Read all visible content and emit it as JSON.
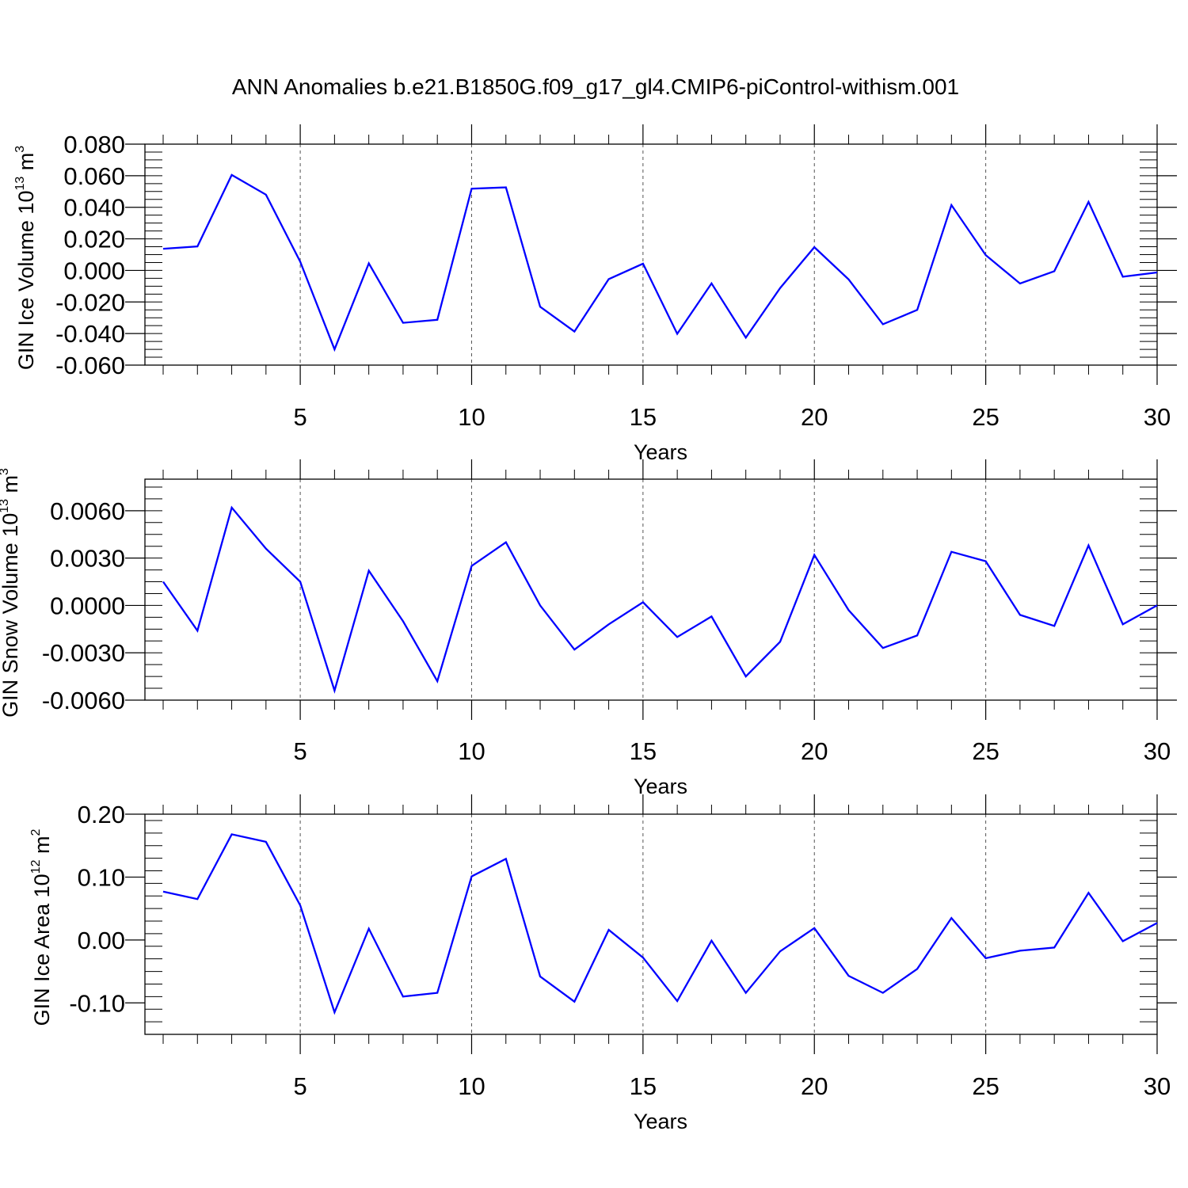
{
  "title": "ANN Anomalies b.e21.B1850G.f09_g17_gl4.CMIP6-piControl-withism.001",
  "colors": {
    "line": "#0000ff",
    "axis": "#000000",
    "grid": "#555555",
    "background": "#ffffff"
  },
  "chart_data": [
    {
      "type": "line",
      "ylabel_main": "GIN Ice Volume 10",
      "ylabel_exp": "13",
      "ylabel_unit": " m",
      "ylabel_unit_exp": "3",
      "xlabel": "Years",
      "xlim": [
        1,
        30
      ],
      "ylim": [
        -0.06,
        0.08
      ],
      "xticks": [
        "5",
        "10",
        "15",
        "20",
        "25",
        "30"
      ],
      "xtick_values": [
        5,
        10,
        15,
        20,
        25,
        30
      ],
      "yticks": [
        "-0.060",
        "-0.040",
        "-0.020",
        "0.000",
        "0.020",
        "0.040",
        "0.060",
        "0.080"
      ],
      "ytick_values": [
        -0.06,
        -0.04,
        -0.02,
        0.0,
        0.02,
        0.04,
        0.06,
        0.08
      ],
      "yminor_step": 0.005,
      "grid": "dashed vertical lines at x ticks",
      "x": [
        1,
        2,
        3,
        4,
        5,
        6,
        7,
        8,
        9,
        10,
        11,
        12,
        13,
        14,
        15,
        16,
        17,
        18,
        19,
        20,
        21,
        22,
        23,
        24,
        25,
        26,
        27,
        28,
        29,
        30
      ],
      "series": [
        {
          "values": [
            0.0137,
            0.0152,
            0.0605,
            0.048,
            0.0055,
            -0.05,
            0.0045,
            -0.0332,
            -0.0313,
            0.0518,
            0.0526,
            -0.023,
            -0.0387,
            -0.0055,
            0.0043,
            -0.0402,
            -0.0082,
            -0.0426,
            -0.0112,
            0.0147,
            -0.0057,
            -0.0341,
            -0.025,
            0.0414,
            0.0097,
            -0.0083,
            -0.0005,
            0.0434,
            -0.004,
            -0.0013
          ]
        }
      ]
    },
    {
      "type": "line",
      "ylabel_main": "GIN Snow Volume 10",
      "ylabel_exp": "13",
      "ylabel_unit": " m",
      "ylabel_unit_exp": "3",
      "xlabel": "Years",
      "xlim": [
        1,
        30
      ],
      "ylim": [
        -0.006,
        0.008
      ],
      "xticks": [
        "5",
        "10",
        "15",
        "20",
        "25",
        "30"
      ],
      "xtick_values": [
        5,
        10,
        15,
        20,
        25,
        30
      ],
      "yticks": [
        "-0.0060",
        "-0.0030",
        "0.0000",
        "0.0030",
        "0.0060"
      ],
      "ytick_values": [
        -0.006,
        -0.003,
        0.0,
        0.003,
        0.006
      ],
      "yminor_step": 0.00075,
      "grid": "dashed vertical lines at x ticks",
      "x": [
        1,
        2,
        3,
        4,
        5,
        6,
        7,
        8,
        9,
        10,
        11,
        12,
        13,
        14,
        15,
        16,
        17,
        18,
        19,
        20,
        21,
        22,
        23,
        24,
        25,
        26,
        27,
        28,
        29,
        30
      ],
      "series": [
        {
          "values": [
            0.0015,
            -0.0016,
            0.0062,
            0.0036,
            0.0015,
            -0.0054,
            0.0022,
            -0.001,
            -0.0048,
            0.0025,
            0.004,
            0.0,
            -0.0028,
            -0.0012,
            0.0002,
            -0.002,
            -0.0007,
            -0.0045,
            -0.0023,
            0.0032,
            -0.0003,
            -0.0027,
            -0.0019,
            0.0034,
            0.0028,
            -0.0006,
            -0.0013,
            0.0038,
            -0.0012,
            0.0
          ]
        }
      ]
    },
    {
      "type": "line",
      "ylabel_main": "GIN Ice Area 10",
      "ylabel_exp": "12",
      "ylabel_unit": " m",
      "ylabel_unit_exp": "2",
      "xlabel": "Years",
      "xlim": [
        1,
        30
      ],
      "ylim": [
        -0.15,
        0.2
      ],
      "xticks": [
        "5",
        "10",
        "15",
        "20",
        "25",
        "30"
      ],
      "xtick_values": [
        5,
        10,
        15,
        20,
        25,
        30
      ],
      "yticks": [
        "-0.10",
        "0.00",
        "0.10",
        "0.20"
      ],
      "ytick_values": [
        -0.1,
        0.0,
        0.1,
        0.2
      ],
      "yminor_step": 0.02,
      "grid": "dashed vertical lines at x ticks",
      "x": [
        1,
        2,
        3,
        4,
        5,
        6,
        7,
        8,
        9,
        10,
        11,
        12,
        13,
        14,
        15,
        16,
        17,
        18,
        19,
        20,
        21,
        22,
        23,
        24,
        25,
        26,
        27,
        28,
        29,
        30
      ],
      "series": [
        {
          "values": [
            0.077,
            0.065,
            0.168,
            0.156,
            0.055,
            -0.115,
            0.018,
            -0.09,
            -0.084,
            0.101,
            0.129,
            -0.058,
            -0.098,
            0.016,
            -0.028,
            -0.097,
            -0.001,
            -0.084,
            -0.018,
            0.019,
            -0.057,
            -0.084,
            -0.046,
            0.035,
            -0.029,
            -0.017,
            -0.012,
            0.075,
            -0.002,
            0.027
          ]
        }
      ]
    }
  ]
}
